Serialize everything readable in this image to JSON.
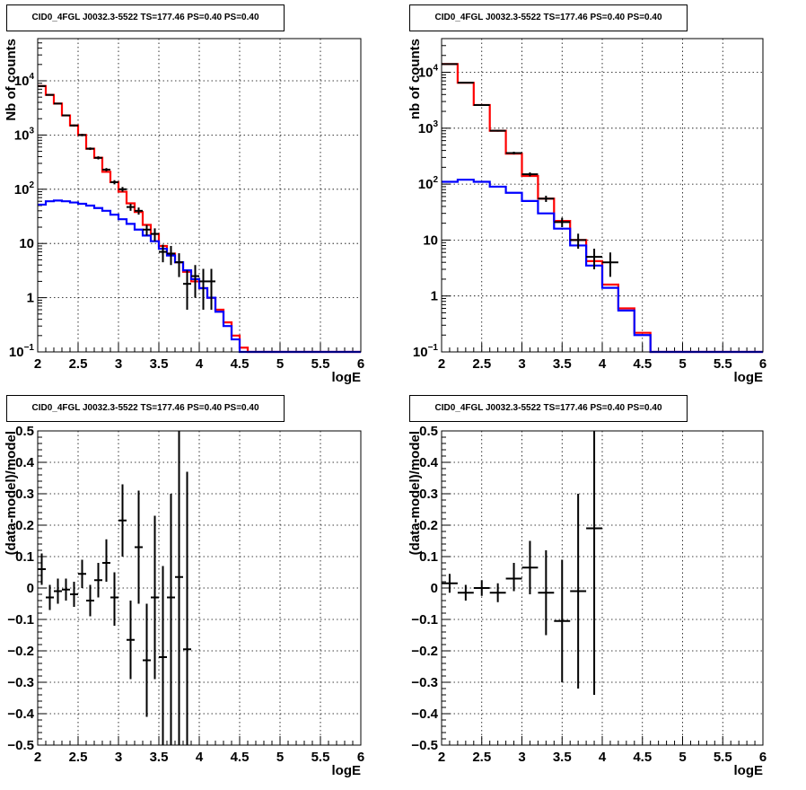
{
  "chart_data": [
    {
      "id": "p1",
      "type": "line",
      "title": "CID0_4FGL J0032.3-5522 TS=177.46 PS=0.40 PS=0.40",
      "xlabel": "logE",
      "ylabel": "Nb of counts",
      "xlim": [
        2,
        6
      ],
      "ylim": [
        0.1,
        60000
      ],
      "yscale": "log",
      "grid": true,
      "xticks": [
        {
          "v": 2,
          "l": "2"
        },
        {
          "v": 2.5,
          "l": "2.5"
        },
        {
          "v": 3,
          "l": "3"
        },
        {
          "v": 3.5,
          "l": "3.5"
        },
        {
          "v": 4,
          "l": "4"
        },
        {
          "v": 4.5,
          "l": "4.5"
        },
        {
          "v": 5,
          "l": "5"
        },
        {
          "v": 5.5,
          "l": "5.5"
        },
        {
          "v": 6,
          "l": "6"
        }
      ],
      "yticks": [
        {
          "v": 0.1,
          "l": "10",
          "sup": "−1"
        },
        {
          "v": 1,
          "l": "1"
        },
        {
          "v": 10,
          "l": "10"
        },
        {
          "v": 100,
          "l": "10",
          "sup": "2"
        },
        {
          "v": 1000,
          "l": "10",
          "sup": "3"
        },
        {
          "v": 10000,
          "l": "10",
          "sup": "4"
        }
      ],
      "bin_edges": [
        2.0,
        2.1,
        2.2,
        2.3,
        2.4,
        2.5,
        2.6,
        2.7,
        2.8,
        2.9,
        3.0,
        3.1,
        3.2,
        3.3,
        3.4,
        3.5,
        3.6,
        3.7,
        3.8,
        3.9,
        4.0,
        4.1,
        4.2,
        4.3,
        4.4,
        4.5,
        4.6,
        4.7,
        4.8,
        4.9,
        5.0,
        5.1,
        5.2,
        5.3,
        5.4,
        5.5,
        5.6,
        5.7,
        5.8,
        5.9,
        6.0
      ],
      "series": [
        {
          "color": "#ff0000",
          "values": [
            8000,
            5500,
            3800,
            2300,
            1500,
            1000,
            560,
            380,
            210,
            135,
            90,
            55,
            38,
            22,
            15,
            9,
            6.5,
            4.5,
            3.0,
            2.0,
            1.5,
            1.0,
            0.6,
            0.35,
            0.2,
            0.12,
            0.1,
            0.1,
            0.1,
            0.1,
            0.1,
            0.1,
            0.1,
            0.1,
            0.1,
            0.1,
            0.1,
            0.1,
            0.1,
            0.1
          ]
        },
        {
          "color": "#0000ff",
          "values": [
            52,
            60,
            62,
            60,
            57,
            54,
            50,
            45,
            40,
            34,
            28,
            23,
            18,
            14,
            11,
            8,
            6,
            4.5,
            3.2,
            2.2,
            1.5,
            1.0,
            0.55,
            0.3,
            0.17,
            0.1,
            0.1,
            0.1,
            0.1,
            0.1,
            0.1,
            0.1,
            0.1,
            0.1,
            0.1,
            0.1,
            0.1,
            0.1,
            0.1,
            0.1
          ]
        }
      ],
      "points": [
        {
          "x": 2.05,
          "y": 8000,
          "lo": 7800,
          "hi": 8200
        },
        {
          "x": 2.15,
          "y": 5500,
          "lo": 5350,
          "hi": 5650
        },
        {
          "x": 2.25,
          "y": 3800,
          "lo": 3700,
          "hi": 3900
        },
        {
          "x": 2.35,
          "y": 2300,
          "lo": 2220,
          "hi": 2380
        },
        {
          "x": 2.45,
          "y": 1500,
          "lo": 1440,
          "hi": 1560
        },
        {
          "x": 2.55,
          "y": 1000,
          "lo": 950,
          "hi": 1050
        },
        {
          "x": 2.65,
          "y": 560,
          "lo": 530,
          "hi": 590
        },
        {
          "x": 2.75,
          "y": 380,
          "lo": 355,
          "hi": 405
        },
        {
          "x": 2.85,
          "y": 230,
          "lo": 214,
          "hi": 246
        },
        {
          "x": 2.95,
          "y": 135,
          "lo": 123,
          "hi": 147
        },
        {
          "x": 3.05,
          "y": 100,
          "lo": 90,
          "hi": 110
        },
        {
          "x": 3.15,
          "y": 47,
          "lo": 40,
          "hi": 54
        },
        {
          "x": 3.25,
          "y": 40,
          "lo": 34,
          "hi": 46
        },
        {
          "x": 3.35,
          "y": 18,
          "lo": 14,
          "hi": 22
        },
        {
          "x": 3.45,
          "y": 15,
          "lo": 11,
          "hi": 19
        },
        {
          "x": 3.55,
          "y": 7,
          "lo": 4.5,
          "hi": 9.5
        },
        {
          "x": 3.65,
          "y": 6.5,
          "lo": 4,
          "hi": 9
        },
        {
          "x": 3.75,
          "y": 4.5,
          "lo": 2.4,
          "hi": 6.6
        },
        {
          "x": 3.85,
          "y": 1.8,
          "lo": 0.6,
          "hi": 3.2
        },
        {
          "x": 3.95,
          "y": 2.5,
          "lo": 1,
          "hi": 4
        },
        {
          "x": 4.05,
          "y": 2,
          "lo": 0.6,
          "hi": 3.4
        },
        {
          "x": 4.15,
          "y": 2,
          "lo": 0.6,
          "hi": 3.4
        }
      ]
    },
    {
      "id": "p2",
      "type": "line",
      "title": "CID0_4FGL J0032.3-5522 TS=177.46 PS=0.40 PS=0.40",
      "xlabel": "logE",
      "ylabel": "nb of counts",
      "xlim": [
        2,
        6
      ],
      "ylim": [
        0.1,
        40000
      ],
      "yscale": "log",
      "grid": true,
      "xticks": [
        {
          "v": 2,
          "l": "2"
        },
        {
          "v": 2.5,
          "l": "2.5"
        },
        {
          "v": 3,
          "l": "3"
        },
        {
          "v": 3.5,
          "l": "3.5"
        },
        {
          "v": 4,
          "l": "4"
        },
        {
          "v": 4.5,
          "l": "4.5"
        },
        {
          "v": 5,
          "l": "5"
        },
        {
          "v": 5.5,
          "l": "5.5"
        },
        {
          "v": 6,
          "l": "6"
        }
      ],
      "yticks": [
        {
          "v": 0.1,
          "l": "10",
          "sup": "−1"
        },
        {
          "v": 1,
          "l": "1"
        },
        {
          "v": 10,
          "l": "10"
        },
        {
          "v": 100,
          "l": "10",
          "sup": "2"
        },
        {
          "v": 1000,
          "l": "10",
          "sup": "3"
        },
        {
          "v": 10000,
          "l": "10",
          "sup": "4"
        }
      ],
      "bin_edges": [
        2.0,
        2.2,
        2.4,
        2.6,
        2.8,
        3.0,
        3.2,
        3.4,
        3.6,
        3.8,
        4.0,
        4.2,
        4.4,
        4.6,
        4.8,
        5.0,
        5.2,
        5.4,
        5.6,
        5.8,
        6.0
      ],
      "series": [
        {
          "color": "#ff0000",
          "values": [
            14000,
            6500,
            2600,
            900,
            350,
            140,
            55,
            22,
            10,
            4.2,
            1.6,
            0.6,
            0.22,
            0.1,
            0.1,
            0.1,
            0.1,
            0.1,
            0.1,
            0.1
          ]
        },
        {
          "color": "#0000ff",
          "values": [
            110,
            120,
            110,
            90,
            70,
            50,
            30,
            16,
            8,
            3.5,
            1.4,
            0.55,
            0.2,
            0.1,
            0.1,
            0.1,
            0.1,
            0.1,
            0.1,
            0.1
          ]
        }
      ],
      "points": [
        {
          "x": 2.1,
          "y": 14000,
          "lo": 13800,
          "hi": 14200
        },
        {
          "x": 2.3,
          "y": 6500,
          "lo": 6400,
          "hi": 6600
        },
        {
          "x": 2.5,
          "y": 2600,
          "lo": 2550,
          "hi": 2650
        },
        {
          "x": 2.7,
          "y": 900,
          "lo": 870,
          "hi": 930
        },
        {
          "x": 2.9,
          "y": 360,
          "lo": 340,
          "hi": 380
        },
        {
          "x": 3.1,
          "y": 150,
          "lo": 138,
          "hi": 162
        },
        {
          "x": 3.3,
          "y": 55,
          "lo": 48,
          "hi": 62
        },
        {
          "x": 3.5,
          "y": 21,
          "lo": 17,
          "hi": 25
        },
        {
          "x": 3.7,
          "y": 10,
          "lo": 7,
          "hi": 13
        },
        {
          "x": 3.9,
          "y": 5,
          "lo": 3,
          "hi": 7
        },
        {
          "x": 4.1,
          "y": 4,
          "lo": 2.2,
          "hi": 6
        }
      ]
    },
    {
      "id": "p3",
      "type": "scatter",
      "title": "CID0_4FGL J0032.3-5522 TS=177.46 PS=0.40 PS=0.40",
      "xlabel": "logE",
      "ylabel": "(data-model)/model",
      "xlim": [
        2,
        6
      ],
      "ylim": [
        -0.5,
        0.5
      ],
      "grid": true,
      "xticks": [
        {
          "v": 2,
          "l": "2"
        },
        {
          "v": 2.5,
          "l": "2.5"
        },
        {
          "v": 3,
          "l": "3"
        },
        {
          "v": 3.5,
          "l": "3.5"
        },
        {
          "v": 4,
          "l": "4"
        },
        {
          "v": 4.5,
          "l": "4.5"
        },
        {
          "v": 5,
          "l": "5"
        },
        {
          "v": 5.5,
          "l": "5.5"
        },
        {
          "v": 6,
          "l": "6"
        }
      ],
      "yticks": [
        {
          "v": -0.5,
          "l": "−0.5"
        },
        {
          "v": -0.4,
          "l": "−0.4"
        },
        {
          "v": -0.3,
          "l": "−0.3"
        },
        {
          "v": -0.2,
          "l": "−0.2"
        },
        {
          "v": -0.1,
          "l": "−0.1"
        },
        {
          "v": 0,
          "l": "0"
        },
        {
          "v": 0.1,
          "l": "0.1"
        },
        {
          "v": 0.2,
          "l": "0.2"
        },
        {
          "v": 0.3,
          "l": "0.3"
        },
        {
          "v": 0.4,
          "l": "0.4"
        },
        {
          "v": 0.5,
          "l": "0.5"
        }
      ],
      "xerr": 0.05,
      "points": [
        {
          "x": 2.05,
          "y": 0.06,
          "lo": 0.01,
          "hi": 0.11
        },
        {
          "x": 2.15,
          "y": -0.03,
          "lo": -0.07,
          "hi": 0.01
        },
        {
          "x": 2.25,
          "y": -0.01,
          "lo": -0.05,
          "hi": 0.03
        },
        {
          "x": 2.35,
          "y": -0.005,
          "lo": -0.04,
          "hi": 0.03
        },
        {
          "x": 2.45,
          "y": -0.02,
          "lo": -0.06,
          "hi": 0.02
        },
        {
          "x": 2.55,
          "y": 0.045,
          "lo": 0.0,
          "hi": 0.09
        },
        {
          "x": 2.65,
          "y": -0.04,
          "lo": -0.09,
          "hi": 0.01
        },
        {
          "x": 2.75,
          "y": 0.025,
          "lo": -0.03,
          "hi": 0.08
        },
        {
          "x": 2.85,
          "y": 0.08,
          "lo": 0.02,
          "hi": 0.155
        },
        {
          "x": 2.95,
          "y": -0.03,
          "lo": -0.12,
          "hi": 0.05
        },
        {
          "x": 3.05,
          "y": 0.215,
          "lo": 0.1,
          "hi": 0.33
        },
        {
          "x": 3.15,
          "y": -0.165,
          "lo": -0.29,
          "hi": -0.04
        },
        {
          "x": 3.25,
          "y": 0.13,
          "lo": -0.05,
          "hi": 0.31
        },
        {
          "x": 3.35,
          "y": -0.23,
          "lo": -0.41,
          "hi": -0.05
        },
        {
          "x": 3.45,
          "y": -0.03,
          "lo": -0.29,
          "hi": 0.23
        },
        {
          "x": 3.55,
          "y": -0.22,
          "lo": -0.5,
          "hi": 0.07
        },
        {
          "x": 3.65,
          "y": -0.03,
          "lo": -0.5,
          "hi": 0.3
        },
        {
          "x": 3.75,
          "y": 0.035,
          "lo": -0.5,
          "hi": 0.5
        },
        {
          "x": 3.85,
          "y": -0.195,
          "lo": -0.5,
          "hi": 0.37
        }
      ]
    },
    {
      "id": "p4",
      "type": "scatter",
      "title": "CID0_4FGL J0032.3-5522 TS=177.46 PS=0.40 PS=0.40",
      "xlabel": "logE",
      "ylabel": "(data-model)/model",
      "xlim": [
        2,
        6
      ],
      "ylim": [
        -0.5,
        0.5
      ],
      "grid": true,
      "xticks": [
        {
          "v": 2,
          "l": "2"
        },
        {
          "v": 2.5,
          "l": "2.5"
        },
        {
          "v": 3,
          "l": "3"
        },
        {
          "v": 3.5,
          "l": "3.5"
        },
        {
          "v": 4,
          "l": "4"
        },
        {
          "v": 4.5,
          "l": "4.5"
        },
        {
          "v": 5,
          "l": "5"
        },
        {
          "v": 5.5,
          "l": "5.5"
        },
        {
          "v": 6,
          "l": "6"
        }
      ],
      "yticks": [
        {
          "v": -0.5,
          "l": "−0.5"
        },
        {
          "v": -0.4,
          "l": "−0.4"
        },
        {
          "v": -0.3,
          "l": "−0.3"
        },
        {
          "v": -0.2,
          "l": "−0.2"
        },
        {
          "v": -0.1,
          "l": "−0.1"
        },
        {
          "v": 0,
          "l": "0"
        },
        {
          "v": 0.1,
          "l": "0.1"
        },
        {
          "v": 0.2,
          "l": "0.2"
        },
        {
          "v": 0.3,
          "l": "0.3"
        },
        {
          "v": 0.4,
          "l": "0.4"
        },
        {
          "v": 0.5,
          "l": "0.5"
        }
      ],
      "xerr": 0.1,
      "points": [
        {
          "x": 2.1,
          "y": 0.015,
          "lo": -0.015,
          "hi": 0.045
        },
        {
          "x": 2.3,
          "y": -0.015,
          "lo": -0.04,
          "hi": 0.01
        },
        {
          "x": 2.5,
          "y": 0.0,
          "lo": -0.025,
          "hi": 0.025
        },
        {
          "x": 2.7,
          "y": -0.015,
          "lo": -0.045,
          "hi": 0.015
        },
        {
          "x": 2.9,
          "y": 0.03,
          "lo": -0.01,
          "hi": 0.08
        },
        {
          "x": 3.1,
          "y": 0.065,
          "lo": -0.02,
          "hi": 0.15
        },
        {
          "x": 3.3,
          "y": -0.015,
          "lo": -0.15,
          "hi": 0.12
        },
        {
          "x": 3.5,
          "y": -0.105,
          "lo": -0.3,
          "hi": 0.09
        },
        {
          "x": 3.7,
          "y": -0.01,
          "lo": -0.32,
          "hi": 0.3
        },
        {
          "x": 3.9,
          "y": 0.19,
          "lo": -0.34,
          "hi": 0.5
        }
      ]
    }
  ]
}
